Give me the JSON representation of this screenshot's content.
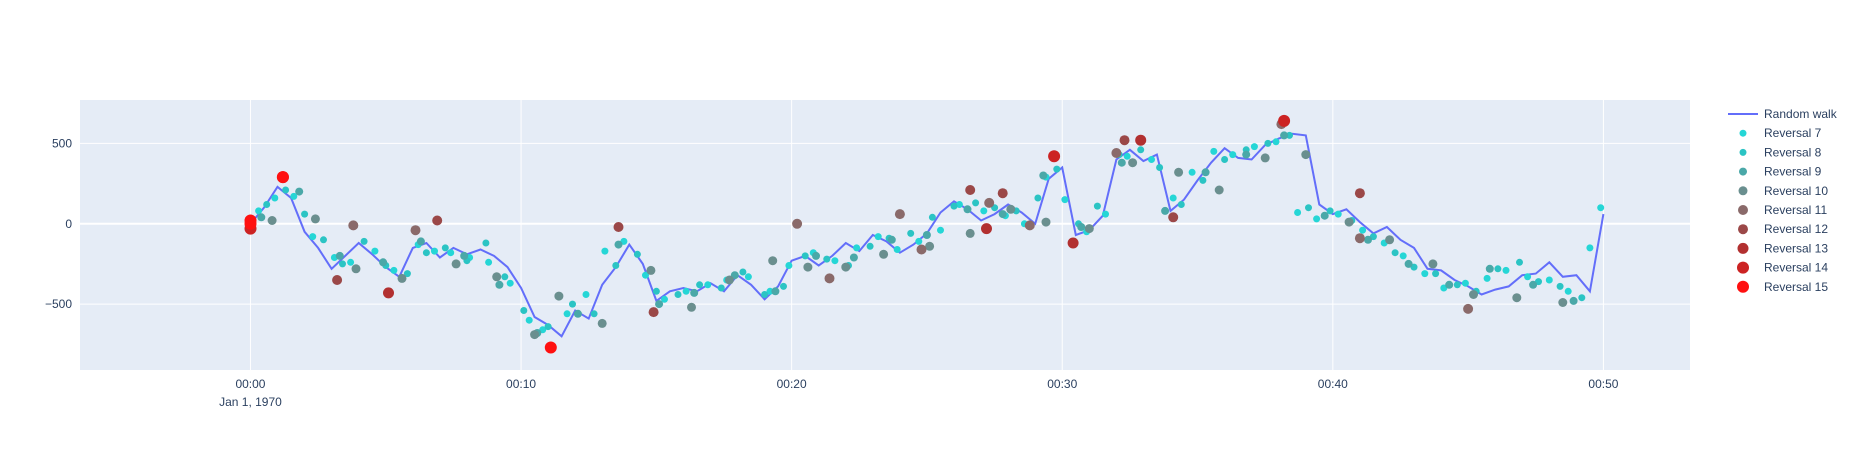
{
  "chart_data": {
    "type": "scatter",
    "title": "",
    "xlabel": "",
    "ylabel": "",
    "x_unit": "minutes",
    "xlim": [
      -6.3,
      53.2
    ],
    "ylim": [
      -910,
      770
    ],
    "grid": true,
    "legend_position": "right",
    "background": "#e5ecf6",
    "x_ticks": [
      {
        "value": 0,
        "label": "00:00",
        "sublabel": "Jan 1, 1970"
      },
      {
        "value": 10,
        "label": "00:10",
        "sublabel": ""
      },
      {
        "value": 20,
        "label": "00:20",
        "sublabel": ""
      },
      {
        "value": 30,
        "label": "00:30",
        "sublabel": ""
      },
      {
        "value": 40,
        "label": "00:40",
        "sublabel": ""
      },
      {
        "value": 50,
        "label": "00:50",
        "sublabel": ""
      }
    ],
    "y_ticks": [
      {
        "value": 500,
        "label": "500"
      },
      {
        "value": 0,
        "label": "0"
      },
      {
        "value": -500,
        "label": "−500"
      }
    ],
    "line_series": {
      "name": "Random walk",
      "color": "#636efa",
      "x": [
        0,
        0.5,
        1,
        1.5,
        2,
        2.5,
        3,
        3.5,
        4,
        4.5,
        5,
        5.5,
        6,
        6.5,
        7,
        7.5,
        8,
        8.5,
        9,
        9.5,
        10,
        10.5,
        11,
        11.5,
        12,
        12.5,
        13,
        13.5,
        14,
        14.5,
        15,
        15.5,
        16,
        16.5,
        17,
        17.5,
        18,
        18.5,
        19,
        19.5,
        20,
        20.5,
        21,
        21.5,
        22,
        22.5,
        23,
        23.5,
        24,
        24.5,
        25,
        25.5,
        26,
        26.5,
        27,
        27.5,
        28,
        28.5,
        29,
        29.5,
        30,
        30.5,
        31,
        31.5,
        32,
        32.5,
        33,
        33.5,
        34,
        34.5,
        35,
        35.5,
        36,
        36.5,
        37,
        37.5,
        38,
        38.5,
        39,
        39.5,
        40,
        40.5,
        41,
        41.5,
        42,
        42.5,
        43,
        43.5,
        44,
        44.5,
        45,
        45.5,
        46,
        46.5,
        47,
        47.5,
        48,
        48.5,
        49,
        49.5,
        50
      ],
      "y": [
        0,
        100,
        230,
        160,
        -50,
        -150,
        -280,
        -200,
        -120,
        -190,
        -270,
        -330,
        -150,
        -120,
        -210,
        -150,
        -190,
        -160,
        -200,
        -270,
        -400,
        -580,
        -630,
        -700,
        -540,
        -590,
        -380,
        -270,
        -130,
        -250,
        -480,
        -420,
        -400,
        -420,
        -370,
        -420,
        -320,
        -380,
        -470,
        -390,
        -230,
        -200,
        -260,
        -200,
        -120,
        -170,
        -70,
        -110,
        -180,
        -130,
        -60,
        70,
        140,
        90,
        20,
        60,
        120,
        70,
        0,
        280,
        350,
        -70,
        -40,
        50,
        400,
        460,
        390,
        430,
        80,
        150,
        270,
        380,
        470,
        410,
        400,
        490,
        530,
        560,
        550,
        120,
        60,
        90,
        10,
        -60,
        -20,
        -100,
        -150,
        -280,
        -290,
        -350,
        -390,
        -440,
        -410,
        -390,
        -320,
        -310,
        -240,
        -330,
        -320,
        -420,
        60
      ]
    },
    "series": [
      {
        "name": "Reversal 7",
        "color": "#25d6d6",
        "size": 7,
        "x": [
          0.3,
          0.9,
          1.6,
          2.3,
          3.1,
          3.7,
          4.6,
          5.3,
          6.2,
          6.8,
          7.4,
          8.1,
          8.8,
          9.6,
          10.3,
          10.8,
          11.7,
          12.4,
          13.1,
          13.8,
          14.6,
          15.3,
          16.1,
          16.9,
          17.6,
          18.4,
          19.2,
          19.9,
          20.8,
          21.6,
          22.4,
          23.2,
          23.9,
          24.7,
          25.5,
          26.2,
          27.1,
          27.9,
          28.6,
          29.4,
          30.1,
          30.9,
          31.6,
          32.4,
          33.3,
          34.1,
          34.8,
          35.6,
          36.3,
          37.1,
          37.9,
          38.7,
          39.4,
          40.2,
          41.1,
          41.9,
          42.6,
          43.4,
          44.1,
          44.9,
          45.7,
          46.4,
          47.2,
          48.0,
          48.7,
          49.5,
          49.9
        ],
        "y": [
          80,
          160,
          170,
          -80,
          -210,
          -240,
          -170,
          -290,
          -130,
          -170,
          -180,
          -210,
          -240,
          -370,
          -600,
          -660,
          -560,
          -440,
          -170,
          -110,
          -320,
          -470,
          -420,
          -380,
          -350,
          -330,
          -420,
          -260,
          -180,
          -230,
          -150,
          -80,
          -160,
          -110,
          -40,
          120,
          80,
          50,
          0,
          290,
          150,
          -50,
          60,
          420,
          400,
          160,
          320,
          450,
          430,
          480,
          510,
          70,
          30,
          60,
          -40,
          -120,
          -200,
          -310,
          -400,
          -370,
          -340,
          -290,
          -330,
          -350,
          -420,
          -150,
          100
        ]
      },
      {
        "name": "Reversal 8",
        "color": "#2bc4c4",
        "size": 7,
        "x": [
          0.6,
          1.3,
          2.0,
          2.7,
          3.4,
          4.2,
          5.0,
          5.8,
          6.5,
          7.2,
          8.0,
          8.7,
          9.4,
          10.1,
          11.0,
          11.9,
          12.7,
          13.5,
          14.3,
          15.0,
          15.8,
          16.6,
          17.4,
          18.2,
          19.0,
          19.7,
          20.5,
          21.3,
          22.1,
          22.9,
          23.6,
          24.4,
          25.2,
          26.0,
          26.8,
          27.5,
          28.3,
          29.1,
          29.8,
          30.6,
          31.3,
          32.1,
          32.9,
          33.6,
          34.4,
          35.2,
          36.0,
          36.8,
          37.6,
          38.4,
          39.1,
          39.9,
          40.7,
          41.5,
          42.3,
          43.0,
          43.8,
          44.6,
          45.3,
          46.1,
          46.9,
          47.6,
          48.4,
          49.2
        ],
        "y": [
          120,
          210,
          60,
          -100,
          -250,
          -110,
          -260,
          -310,
          -180,
          -150,
          -230,
          -120,
          -330,
          -540,
          -640,
          -500,
          -560,
          -260,
          -190,
          -420,
          -440,
          -380,
          -400,
          -300,
          -440,
          -390,
          -200,
          -220,
          -260,
          -140,
          -90,
          -60,
          40,
          110,
          130,
          100,
          80,
          160,
          340,
          0,
          110,
          430,
          460,
          350,
          120,
          270,
          400,
          460,
          500,
          550,
          100,
          80,
          20,
          -80,
          -180,
          -270,
          -310,
          -380,
          -420,
          -280,
          -240,
          -360,
          -390,
          -460
        ]
      },
      {
        "name": "Reversal 9",
        "color": "#4aa8a8",
        "size": 8,
        "x": [
          0.4,
          1.8,
          3.3,
          4.9,
          6.3,
          7.9,
          9.2,
          10.6,
          12.1,
          13.6,
          15.1,
          16.4,
          17.9,
          19.4,
          20.9,
          22.3,
          23.7,
          25.0,
          26.5,
          27.8,
          29.3,
          30.7,
          32.2,
          33.8,
          35.3,
          36.8,
          38.2,
          39.7,
          41.3,
          42.8,
          44.3,
          45.8,
          47.4,
          48.9
        ],
        "y": [
          40,
          200,
          -200,
          -240,
          -110,
          -200,
          -380,
          -680,
          -560,
          -130,
          -500,
          -430,
          -320,
          -420,
          -200,
          -210,
          -100,
          -70,
          90,
          60,
          300,
          -20,
          380,
          80,
          320,
          430,
          550,
          50,
          -100,
          -250,
          -380,
          -280,
          -380,
          -480
        ]
      },
      {
        "name": "Reversal 10",
        "color": "#6a8f8f",
        "size": 9,
        "x": [
          0.8,
          2.4,
          3.9,
          5.6,
          7.6,
          9.1,
          10.5,
          11.4,
          13.0,
          14.8,
          16.3,
          17.7,
          19.3,
          20.6,
          22.0,
          23.4,
          25.1,
          26.6,
          28.1,
          29.4,
          31.0,
          32.6,
          34.3,
          35.8,
          37.5,
          39.0,
          40.6,
          42.1,
          43.7,
          45.2,
          46.8,
          48.5
        ],
        "y": [
          20,
          30,
          -280,
          -340,
          -250,
          -330,
          -690,
          -450,
          -620,
          -290,
          -520,
          -350,
          -230,
          -270,
          -270,
          -190,
          -140,
          -60,
          90,
          10,
          -30,
          380,
          320,
          210,
          410,
          430,
          10,
          -100,
          -250,
          -440,
          -460,
          -490
        ]
      },
      {
        "name": "Reversal 11",
        "color": "#8a6a6a",
        "size": 10,
        "x": [
          3.8,
          6.1,
          20.2,
          21.4,
          24.0,
          24.8,
          27.3,
          28.8,
          32.0,
          38.1,
          41.0,
          45.0
        ],
        "y": [
          -10,
          -40,
          0,
          -340,
          60,
          -160,
          130,
          -10,
          440,
          620,
          -90,
          -530
        ]
      },
      {
        "name": "Reversal 12",
        "color": "#9b4848",
        "size": 10,
        "x": [
          3.2,
          6.9,
          13.6,
          14.9,
          26.6,
          27.8,
          32.3,
          34.1,
          41.0
        ],
        "y": [
          -350,
          20,
          -20,
          -550,
          210,
          190,
          520,
          40,
          190
        ]
      },
      {
        "name": "Reversal 13",
        "color": "#b23030",
        "size": 11,
        "x": [
          5.1,
          27.2,
          30.4,
          32.9
        ],
        "y": [
          -430,
          -30,
          -120,
          520
        ]
      },
      {
        "name": "Reversal 14",
        "color": "#cc2323",
        "size": 12,
        "x": [
          0,
          1.2,
          29.7,
          38.2
        ],
        "y": [
          -30,
          290,
          420,
          640
        ]
      },
      {
        "name": "Reversal 15",
        "color": "#ff1010",
        "size": 12,
        "x": [
          0,
          0,
          1.2,
          11.1
        ],
        "y": [
          0,
          20,
          290,
          -770
        ]
      }
    ]
  }
}
